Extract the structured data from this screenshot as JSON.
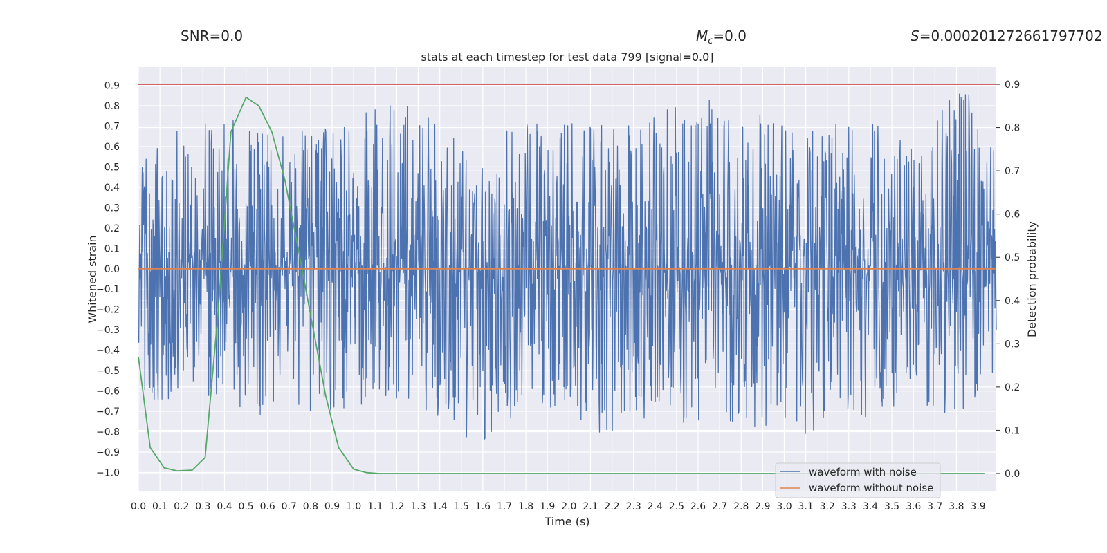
{
  "header": {
    "snr": "SNR=0.0",
    "mc_symbol": "M",
    "mc_sub": "c",
    "mc_value": "=0.0",
    "s_symbol": "S",
    "s_value": "=0.000201272661797702"
  },
  "chart_data": {
    "type": "line",
    "title": "stats at each timestep for test data 799 [signal=0.0]",
    "xlabel": "Time (s)",
    "ylabel": "Whitened strain",
    "y2label": "Detection probability",
    "xlim": [
      0.0,
      3.985
    ],
    "ylim": [
      -1.09,
      0.99
    ],
    "y2lim": [
      -0.04,
      0.94
    ],
    "xticks": [
      "0.0",
      "0.1",
      "0.2",
      "0.3",
      "0.4",
      "0.5",
      "0.6",
      "0.7",
      "0.8",
      "0.9",
      "1.0",
      "1.1",
      "1.2",
      "1.3",
      "1.4",
      "1.5",
      "1.6",
      "1.7",
      "1.8",
      "1.9",
      "2.0",
      "2.1",
      "2.2",
      "2.3",
      "2.4",
      "2.5",
      "2.6",
      "2.7",
      "2.8",
      "2.9",
      "3.0",
      "3.1",
      "3.2",
      "3.3",
      "3.4",
      "3.5",
      "3.6",
      "3.7",
      "3.8",
      "3.9"
    ],
    "yticks": [
      "0.9",
      "0.8",
      "0.7",
      "0.6",
      "0.5",
      "0.4",
      "0.3",
      "0.2",
      "0.1",
      "0.0",
      "−0.1",
      "−0.2",
      "−0.3",
      "−0.4",
      "−0.5",
      "−0.6",
      "−0.7",
      "−0.8",
      "−0.9",
      "−1.0"
    ],
    "y2ticks": [
      "0.9",
      "0.8",
      "0.7",
      "0.6",
      "0.5",
      "0.4",
      "0.3",
      "0.2",
      "0.1",
      "0.0"
    ],
    "grid": true,
    "legend_position": "bottom-right",
    "series": [
      {
        "name": "waveform with noise",
        "color": "#4c72b0",
        "axis": "left",
        "kind": "noise",
        "x_range": [
          0.0,
          4.0
        ],
        "envelope": [
          {
            "x": 0.0,
            "upper": 0.52,
            "lower": -0.68
          },
          {
            "x": 0.2,
            "upper": 0.7,
            "lower": -0.62
          },
          {
            "x": 0.4,
            "upper": 0.75,
            "lower": -0.65
          },
          {
            "x": 0.6,
            "upper": 0.7,
            "lower": -0.75
          },
          {
            "x": 1.0,
            "upper": 0.7,
            "lower": -0.7
          },
          {
            "x": 1.1,
            "upper": 0.86,
            "lower": -0.62
          },
          {
            "x": 1.55,
            "upper": 0.7,
            "lower": -0.87
          },
          {
            "x": 2.0,
            "upper": 0.72,
            "lower": -0.65
          },
          {
            "x": 2.1,
            "upper": 0.7,
            "lower": -0.82
          },
          {
            "x": 2.65,
            "upper": 0.84,
            "lower": -0.75
          },
          {
            "x": 3.1,
            "upper": 0.7,
            "lower": -0.81
          },
          {
            "x": 3.55,
            "upper": 0.73,
            "lower": -0.7
          },
          {
            "x": 3.85,
            "upper": 0.89,
            "lower": -0.78
          },
          {
            "x": 3.985,
            "upper": 0.55,
            "lower": -0.52
          }
        ]
      },
      {
        "name": "waveform without noise",
        "color": "#dd8452",
        "axis": "left",
        "x": [
          0.0,
          4.0
        ],
        "y": [
          0.0,
          0.0
        ]
      },
      {
        "name": "",
        "color": "#55a868",
        "axis": "right",
        "x": [
          0.0,
          0.055,
          0.12,
          0.18,
          0.25,
          0.31,
          0.37,
          0.43,
          0.5,
          0.56,
          0.62,
          0.68,
          0.75,
          0.81,
          0.87,
          0.93,
          1.0,
          1.06,
          1.12,
          1.5,
          2.0,
          2.5,
          3.0,
          3.5,
          3.93
        ],
        "y": [
          0.27,
          0.06,
          0.013,
          0.006,
          0.008,
          0.037,
          0.37,
          0.79,
          0.87,
          0.85,
          0.79,
          0.68,
          0.5,
          0.34,
          0.18,
          0.06,
          0.01,
          0.002,
          0.0,
          0.0,
          0.0,
          0.0,
          0.0,
          0.0,
          0.0
        ]
      },
      {
        "name": "",
        "color": "#c44e52",
        "axis": "right",
        "x": [
          0.0,
          4.0
        ],
        "y": [
          0.9,
          0.9
        ]
      }
    ]
  }
}
